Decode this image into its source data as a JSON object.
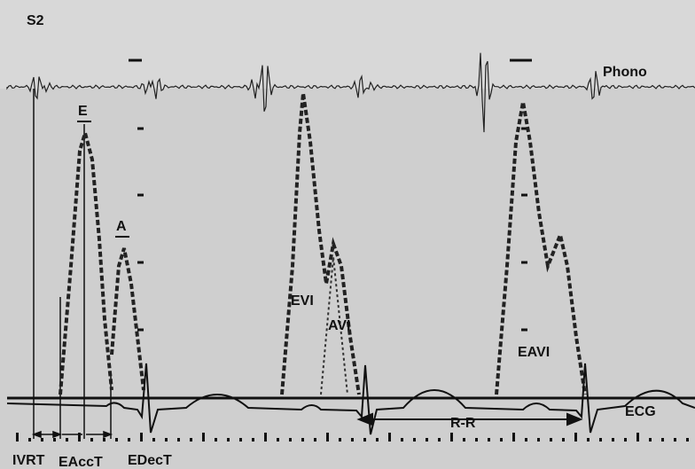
{
  "annotations": [
    "S2",
    "E",
    "A",
    "Phono",
    "EVI",
    "AVI",
    "EAVI",
    "ECG",
    "R-R",
    "IVRT",
    "EAccT",
    "EDecT"
  ]
}
